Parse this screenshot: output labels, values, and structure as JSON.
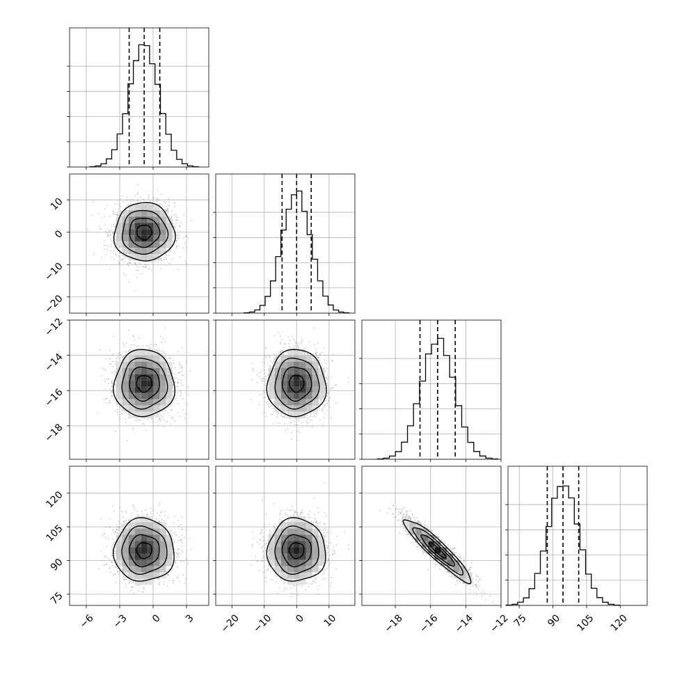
{
  "chart_data": {
    "type": "corner",
    "grid": true,
    "colors": {
      "hist": "#000000",
      "points": "#9a9a9a",
      "contour": "#000000",
      "grid": "#b0b0b0"
    },
    "params": [
      {
        "range": [
          -7.5,
          5.0
        ],
        "ticks": [
          -6,
          -3,
          0,
          3
        ],
        "tick_labels": [
          "−6",
          "−3",
          "0",
          "3"
        ],
        "mean": -0.8,
        "sigma": 1.35,
        "quantiles": [
          -2.15,
          -0.8,
          0.6
        ],
        "hist_peak_counts": 48
      },
      {
        "range": [
          -25.0,
          18.0
        ],
        "ticks": [
          -20,
          -10,
          0,
          10
        ],
        "tick_labels": [
          "−20",
          "−10",
          "0",
          "10"
        ],
        "mean": 0.0,
        "sigma": 4.5,
        "quantiles": [
          -4.5,
          0.0,
          4.5
        ],
        "hist_peak_counts": 48
      },
      {
        "range": [
          -19.9,
          -12.0
        ],
        "ticks": [
          -18,
          -16,
          -14,
          -12
        ],
        "tick_labels": [
          "−18",
          "−16",
          "−14",
          "−12"
        ],
        "mean": -15.6,
        "sigma": 0.95,
        "quantiles": [
          -16.6,
          -15.6,
          -14.6
        ],
        "hist_peak_counts": 48
      },
      {
        "range": [
          70.0,
          132.0
        ],
        "ticks": [
          75,
          90,
          105,
          120
        ],
        "tick_labels": [
          "75",
          "90",
          "105",
          "120"
        ],
        "mean": 94.5,
        "sigma": 7.0,
        "quantiles": [
          87.5,
          94.5,
          101.5
        ],
        "hist_peak_counts": 48
      }
    ],
    "correlations": [
      [
        1.0,
        0.0,
        0.0,
        0.0
      ],
      [
        0.0,
        1.0,
        0.0,
        0.0
      ],
      [
        0.0,
        0.0,
        1.0,
        -0.93
      ],
      [
        0.0,
        0.0,
        -0.93,
        1.0
      ]
    ],
    "contour_levels_sigma": [
      0.5,
      1.0,
      1.5,
      2.0
    ]
  }
}
